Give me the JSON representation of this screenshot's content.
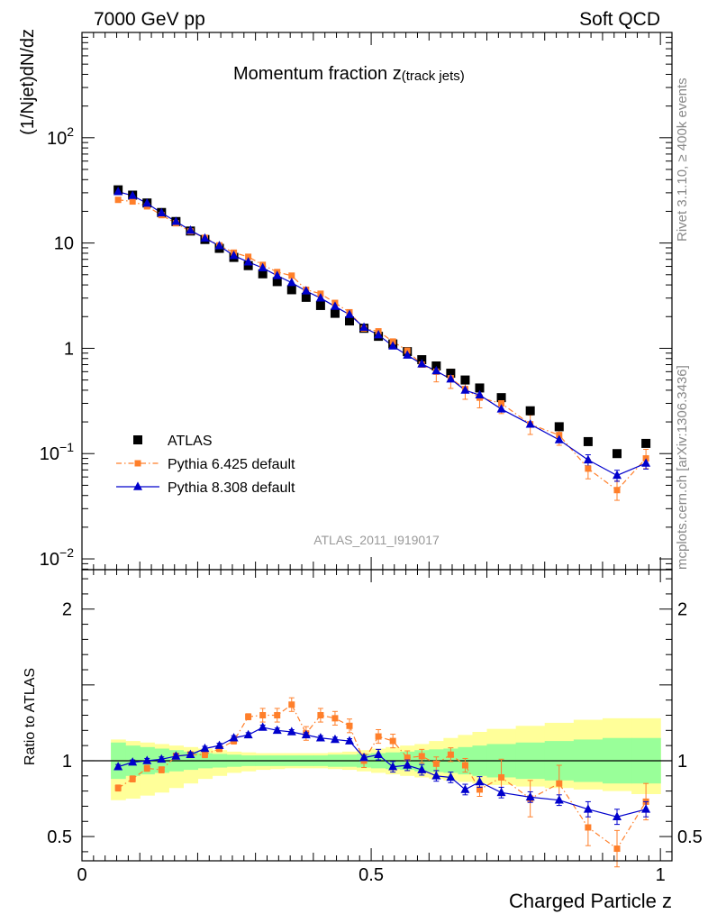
{
  "header": {
    "left": "7000 GeV pp",
    "right": "Soft QCD"
  },
  "side": {
    "rivet": "Rivet 3.1.10, ≥ 400k events",
    "mcplots": "mcplots.cern.ch [arXiv:1306.3436]"
  },
  "chart_data": [
    {
      "type": "scatter",
      "title": "Momentum fraction z",
      "title_sub": "(track jets)",
      "ylabel": "(1/Njet)dN/dz",
      "yscale": "log",
      "xlim": [
        0,
        1.02
      ],
      "ylim": [
        0.0079,
        1000
      ],
      "y_ticks": [
        {
          "value": 0.01,
          "base": "10",
          "exp": "−2"
        },
        {
          "value": 0.1,
          "base": "10",
          "exp": "−1"
        },
        {
          "value": 1,
          "base": "1",
          "exp": ""
        },
        {
          "value": 10,
          "base": "10",
          "exp": ""
        },
        {
          "value": 100,
          "base": "10",
          "exp": "2"
        }
      ],
      "watermark": "ATLAS_2011_I919017",
      "legend_position": "bottom-left",
      "x": [
        0.0625,
        0.0875,
        0.1125,
        0.1375,
        0.1625,
        0.1875,
        0.2125,
        0.2375,
        0.2625,
        0.2875,
        0.3125,
        0.3375,
        0.3625,
        0.3875,
        0.4125,
        0.4375,
        0.4625,
        0.4875,
        0.5125,
        0.5375,
        0.5625,
        0.5875,
        0.6125,
        0.6375,
        0.6625,
        0.6875,
        0.725,
        0.775,
        0.825,
        0.875,
        0.925,
        0.975
      ],
      "series": [
        {
          "name": "ATLAS",
          "color": "#000000",
          "marker": "square",
          "values": [
            32,
            28.5,
            24,
            19.5,
            16,
            13,
            10.8,
            8.9,
            7.3,
            6.1,
            5.1,
            4.3,
            3.6,
            3.05,
            2.55,
            2.15,
            1.82,
            1.55,
            1.3,
            1.1,
            0.93,
            0.78,
            0.68,
            0.58,
            0.5,
            0.42,
            0.34,
            0.255,
            0.18,
            0.13,
            0.1,
            0.125
          ]
        },
        {
          "name": "Pythia 6.425 default",
          "color": "#ff7f2a",
          "marker": "square",
          "line": "dashdot",
          "values": [
            25.7,
            24.8,
            22.3,
            18.4,
            15.4,
            12.9,
            11.2,
            9.5,
            8.1,
            7.4,
            6.2,
            5.3,
            4.9,
            3.6,
            3.3,
            2.7,
            2.2,
            1.54,
            1.45,
            1.16,
            0.95,
            0.7,
            0.6,
            0.52,
            0.41,
            0.34,
            0.3,
            0.19,
            0.15,
            0.072,
            0.045,
            0.09
          ]
        },
        {
          "name": "Pythia 8.308 default",
          "color": "#0000cc",
          "marker": "triangle",
          "line": "solid",
          "values": [
            30.7,
            28.2,
            23.8,
            19.3,
            16.0,
            13.2,
            11.1,
            9.4,
            7.6,
            6.6,
            5.8,
            4.9,
            4.2,
            3.5,
            3.0,
            2.5,
            2.09,
            1.58,
            1.34,
            1.05,
            0.86,
            0.71,
            0.61,
            0.51,
            0.4,
            0.36,
            0.265,
            0.19,
            0.135,
            0.087,
            0.062,
            0.081
          ]
        }
      ]
    },
    {
      "type": "line",
      "ylabel": "Ratio to ATLAS",
      "xlabel": "Charged Particle z",
      "xlim": [
        0,
        1.02
      ],
      "ylim": [
        0.34,
        2.26
      ],
      "y_ticks": [
        {
          "value": 0.5,
          "label": "0.5"
        },
        {
          "value": 1,
          "label": "1"
        },
        {
          "value": 2,
          "label": "2"
        }
      ],
      "x_ticks": [
        {
          "value": 0,
          "label": "0"
        },
        {
          "value": 0.5,
          "label": "0.5"
        },
        {
          "value": 1,
          "label": "1"
        }
      ],
      "x": [
        0.0625,
        0.0875,
        0.1125,
        0.1375,
        0.1625,
        0.1875,
        0.2125,
        0.2375,
        0.2625,
        0.2875,
        0.3125,
        0.3375,
        0.3625,
        0.3875,
        0.4125,
        0.4375,
        0.4625,
        0.4875,
        0.5125,
        0.5375,
        0.5625,
        0.5875,
        0.6125,
        0.6375,
        0.6625,
        0.6875,
        0.725,
        0.775,
        0.825,
        0.875,
        0.925,
        0.975
      ],
      "bin_edges": [
        0.05,
        0.075,
        0.1,
        0.125,
        0.15,
        0.175,
        0.2,
        0.225,
        0.25,
        0.275,
        0.3,
        0.325,
        0.35,
        0.375,
        0.4,
        0.425,
        0.45,
        0.475,
        0.5,
        0.525,
        0.55,
        0.575,
        0.6,
        0.625,
        0.65,
        0.675,
        0.7,
        0.75,
        0.8,
        0.85,
        0.9,
        0.95,
        1.0
      ],
      "uncertainty_bands": {
        "inner": {
          "color": "#99ff99",
          "lower": [
            0.88,
            0.9,
            0.91,
            0.92,
            0.93,
            0.94,
            0.95,
            0.955,
            0.96,
            0.965,
            0.965,
            0.965,
            0.965,
            0.965,
            0.965,
            0.96,
            0.96,
            0.955,
            0.95,
            0.945,
            0.94,
            0.93,
            0.925,
            0.92,
            0.91,
            0.9,
            0.89,
            0.88,
            0.87,
            0.86,
            0.85,
            0.85
          ],
          "upper": [
            1.12,
            1.1,
            1.09,
            1.08,
            1.07,
            1.06,
            1.05,
            1.045,
            1.04,
            1.035,
            1.035,
            1.035,
            1.035,
            1.035,
            1.035,
            1.04,
            1.04,
            1.045,
            1.05,
            1.055,
            1.06,
            1.07,
            1.075,
            1.08,
            1.09,
            1.1,
            1.11,
            1.12,
            1.13,
            1.14,
            1.15,
            1.15
          ]
        },
        "outer": {
          "color": "#ffff99",
          "lower": [
            0.74,
            0.75,
            0.77,
            0.79,
            0.82,
            0.85,
            0.88,
            0.9,
            0.92,
            0.93,
            0.94,
            0.945,
            0.95,
            0.95,
            0.95,
            0.945,
            0.94,
            0.93,
            0.92,
            0.91,
            0.9,
            0.89,
            0.88,
            0.87,
            0.86,
            0.85,
            0.84,
            0.83,
            0.82,
            0.81,
            0.8,
            0.78
          ],
          "upper": [
            1.14,
            1.13,
            1.12,
            1.11,
            1.1,
            1.09,
            1.08,
            1.07,
            1.06,
            1.055,
            1.05,
            1.05,
            1.05,
            1.05,
            1.05,
            1.055,
            1.06,
            1.07,
            1.08,
            1.09,
            1.1,
            1.11,
            1.13,
            1.15,
            1.17,
            1.19,
            1.21,
            1.23,
            1.25,
            1.27,
            1.28,
            1.28
          ]
        }
      },
      "series": [
        {
          "name": "Pythia 6.425 default",
          "color": "#ff7f2a",
          "marker": "square",
          "line": "dashdot",
          "values": [
            0.82,
            0.88,
            0.95,
            0.94,
            1.03,
            1.04,
            1.04,
            1.08,
            1.13,
            1.29,
            1.3,
            1.3,
            1.37,
            1.18,
            1.3,
            1.28,
            1.23,
            1.0,
            1.16,
            1.13,
            1.02,
            1.03,
            0.98,
            1.04,
            0.97,
            0.81,
            0.89,
            0.75,
            0.85,
            0.56,
            0.42,
            0.73
          ]
        },
        {
          "name": "Pythia 8.308 default",
          "color": "#0000cc",
          "marker": "triangle",
          "line": "solid",
          "values": [
            0.96,
            0.99,
            1.0,
            1.01,
            1.03,
            1.04,
            1.08,
            1.1,
            1.15,
            1.17,
            1.22,
            1.2,
            1.19,
            1.17,
            1.15,
            1.14,
            1.13,
            1.02,
            1.04,
            0.96,
            0.97,
            0.94,
            0.9,
            0.89,
            0.81,
            0.86,
            0.79,
            0.76,
            0.74,
            0.68,
            0.63,
            0.68
          ]
        }
      ]
    }
  ]
}
